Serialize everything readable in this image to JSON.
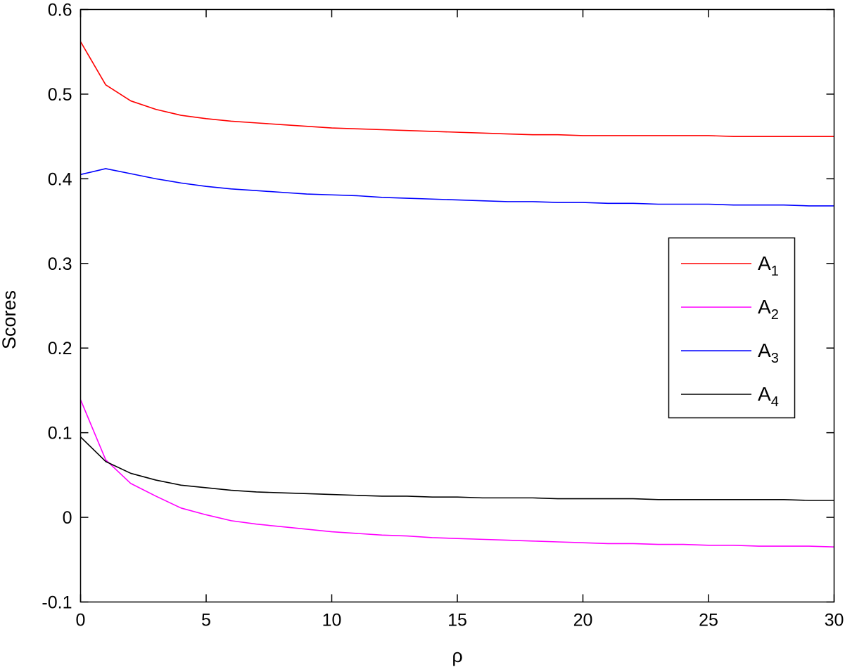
{
  "chart_data": {
    "type": "line",
    "xlabel": "ρ",
    "ylabel": "Scores",
    "xlim": [
      0,
      30
    ],
    "ylim": [
      -0.1,
      0.6
    ],
    "xticks": [
      "0",
      "5",
      "10",
      "15",
      "20",
      "25",
      "30"
    ],
    "yticks": [
      "-0.1",
      "0",
      "0.1",
      "0.2",
      "0.3",
      "0.4",
      "0.5",
      "0.6"
    ],
    "grid": false,
    "legend_position": "right",
    "x": [
      0,
      1,
      2,
      3,
      4,
      5,
      6,
      7,
      8,
      9,
      10,
      11,
      12,
      13,
      14,
      15,
      16,
      17,
      18,
      19,
      20,
      21,
      22,
      23,
      24,
      25,
      26,
      27,
      28,
      29,
      30
    ],
    "series": [
      {
        "name": "A",
        "subscript": "1",
        "color": "#ff0000",
        "values": [
          0.562,
          0.511,
          0.492,
          0.482,
          0.475,
          0.471,
          0.468,
          0.466,
          0.464,
          0.462,
          0.46,
          0.459,
          0.458,
          0.457,
          0.456,
          0.455,
          0.454,
          0.453,
          0.452,
          0.452,
          0.451,
          0.451,
          0.451,
          0.451,
          0.451,
          0.451,
          0.45,
          0.45,
          0.45,
          0.45,
          0.45
        ]
      },
      {
        "name": "A",
        "subscript": "2",
        "color": "#ff00ff",
        "values": [
          0.139,
          0.068,
          0.04,
          0.025,
          0.011,
          0.003,
          -0.004,
          -0.008,
          -0.011,
          -0.014,
          -0.017,
          -0.019,
          -0.021,
          -0.022,
          -0.024,
          -0.025,
          -0.026,
          -0.027,
          -0.028,
          -0.029,
          -0.03,
          -0.031,
          -0.031,
          -0.032,
          -0.032,
          -0.033,
          -0.033,
          -0.034,
          -0.034,
          -0.034,
          -0.035
        ]
      },
      {
        "name": "A",
        "subscript": "3",
        "color": "#0000ff",
        "values": [
          0.405,
          0.412,
          0.406,
          0.4,
          0.395,
          0.391,
          0.388,
          0.386,
          0.384,
          0.382,
          0.381,
          0.38,
          0.378,
          0.377,
          0.376,
          0.375,
          0.374,
          0.373,
          0.373,
          0.372,
          0.372,
          0.371,
          0.371,
          0.37,
          0.37,
          0.37,
          0.369,
          0.369,
          0.369,
          0.368,
          0.368
        ]
      },
      {
        "name": "A",
        "subscript": "4",
        "color": "#000000",
        "values": [
          0.095,
          0.066,
          0.052,
          0.044,
          0.038,
          0.035,
          0.032,
          0.03,
          0.029,
          0.028,
          0.027,
          0.026,
          0.025,
          0.025,
          0.024,
          0.024,
          0.023,
          0.023,
          0.023,
          0.022,
          0.022,
          0.022,
          0.022,
          0.021,
          0.021,
          0.021,
          0.021,
          0.021,
          0.021,
          0.02,
          0.02
        ]
      }
    ]
  }
}
